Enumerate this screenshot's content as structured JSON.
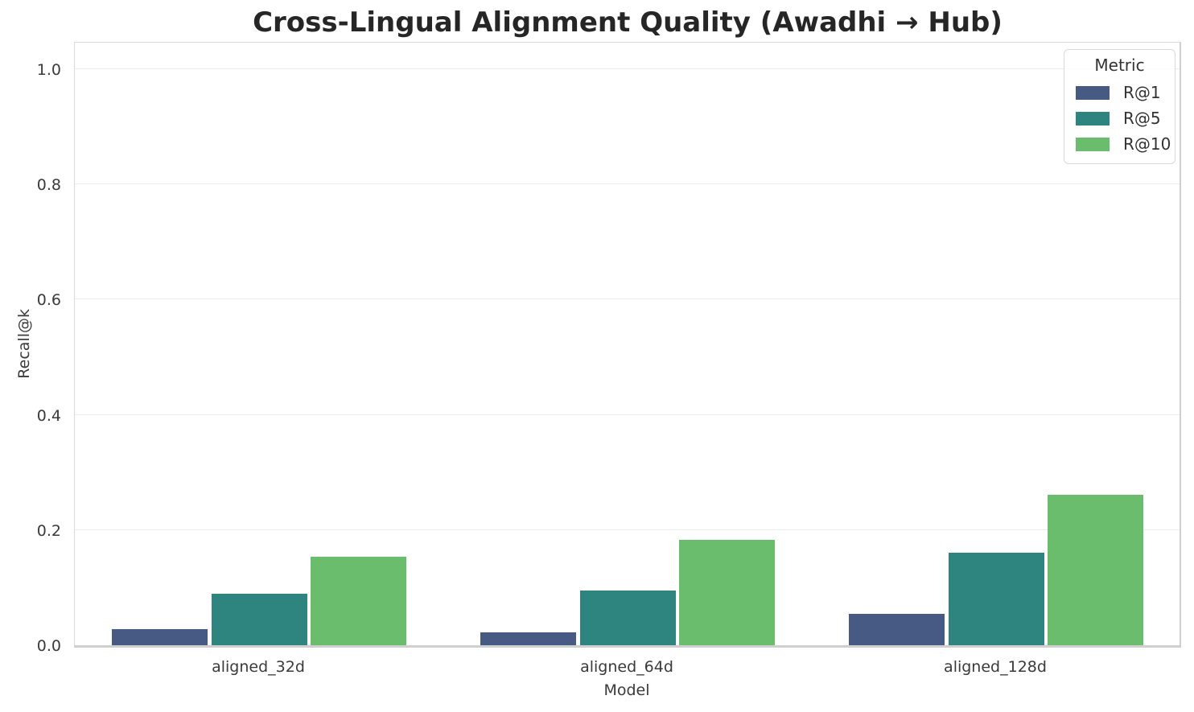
{
  "chart_data": {
    "type": "bar",
    "title": "Cross-Lingual Alignment Quality (Awadhi → Hub)",
    "xlabel": "Model",
    "ylabel": "Recall@k",
    "categories": [
      "aligned_32d",
      "aligned_64d",
      "aligned_128d"
    ],
    "series": [
      {
        "name": "R@1",
        "color": "#475a84",
        "values": [
          0.028,
          0.022,
          0.054
        ]
      },
      {
        "name": "R@5",
        "color": "#2e8580",
        "values": [
          0.09,
          0.095,
          0.16
        ]
      },
      {
        "name": "R@10",
        "color": "#69bd6c",
        "values": [
          0.153,
          0.183,
          0.261
        ]
      }
    ],
    "ylim": [
      0.0,
      1.05
    ],
    "yticks": [
      0.0,
      0.2,
      0.4,
      0.6,
      0.8,
      1.0
    ],
    "ytick_labels": [
      "0.0",
      "0.2",
      "0.4",
      "0.6",
      "0.8",
      "1.0"
    ],
    "grid": "horizontal",
    "legend": {
      "title": "Metric",
      "position": "upper right"
    }
  }
}
